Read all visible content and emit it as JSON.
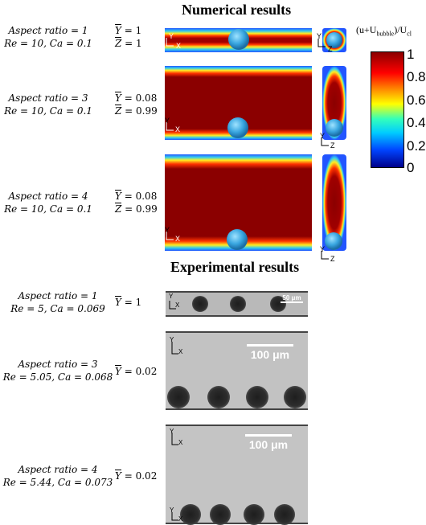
{
  "headers": {
    "numerical": "Numerical results",
    "experimental": "Experimental results"
  },
  "numerical": [
    {
      "aspect": "Aspect ratio = 1",
      "params": "Re = 10, Ca = 0.1",
      "ybar": " = 1",
      "zbar": " = 1"
    },
    {
      "aspect": "Aspect ratio = 3",
      "params": "Re = 10, Ca = 0.1",
      "ybar": " = 0.08",
      "zbar": " = 0.99"
    },
    {
      "aspect": "Aspect ratio = 4",
      "params": "Re = 10, Ca = 0.1",
      "ybar": " = 0.08",
      "zbar": " = 0.99"
    }
  ],
  "experimental": [
    {
      "aspect": "Aspect ratio = 1",
      "params": "Re = 5, Ca = 0.069",
      "ybar": " = 1",
      "scale": "50 μm"
    },
    {
      "aspect": "Aspect ratio = 3",
      "params": "Re = 5.05, Ca = 0.068",
      "ybar": " = 0.02",
      "scale": "100 μm"
    },
    {
      "aspect": "Aspect ratio = 4",
      "params": "Re = 5.44, Ca = 0.073",
      "ybar": " = 0.02",
      "scale": "100 μm"
    }
  ],
  "colorbar": {
    "title_main": "(u+U",
    "title_sub1": "bubble",
    "title_mid": ")/U",
    "title_sub2": "cl",
    "ticks": [
      "1",
      "0.8",
      "0.6",
      "0.4",
      "0.2",
      "0"
    ],
    "colors": [
      "#8b0000",
      "#ff0000",
      "#ffff00",
      "#00e0e0",
      "#0000ff",
      "#00008b"
    ]
  },
  "symbols": {
    "y": "Y",
    "z": "Z",
    "x": "X"
  }
}
